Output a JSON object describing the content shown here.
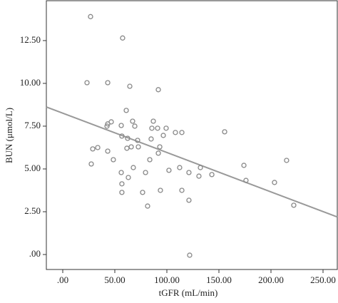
{
  "chart_data": {
    "type": "scatter",
    "x_label": "tGFR (mL/min)",
    "y_label": "BUN (μmol/L)",
    "xlim": [
      -15.75,
      263.7
    ],
    "ylim": [
      -0.875,
      14.83
    ],
    "xticks": [
      {
        "value": 0,
        "label": ".00"
      },
      {
        "value": 50,
        "label": "50.00"
      },
      {
        "value": 100,
        "label": "100.00"
      },
      {
        "value": 150,
        "label": "150.00"
      },
      {
        "value": 200,
        "label": "200.00"
      },
      {
        "value": 250,
        "label": "250.00"
      }
    ],
    "yticks": [
      {
        "value": 0,
        "label": ".00"
      },
      {
        "value": 2.5,
        "label": "2.50"
      },
      {
        "value": 5,
        "label": "5.00"
      },
      {
        "value": 7.5,
        "label": "7.50"
      },
      {
        "value": 10,
        "label": "10.00"
      },
      {
        "value": 12.5,
        "label": "12.50"
      }
    ],
    "color": "#888888",
    "fit_color": "#999999",
    "fit": {
      "intercept": 8.26,
      "slope": -0.023
    },
    "x": [
      26.7,
      57.5,
      23.3,
      43.2,
      64.4,
      91.8,
      61,
      46.6,
      43.2,
      42.5,
      67.1,
      69.2,
      87,
      85.6,
      91.1,
      99.3,
      56.2,
      108.2,
      114.4,
      155.5,
      56.8,
      62.3,
      71.9,
      96.6,
      84.9,
      61.6,
      65.8,
      72.6,
      28.8,
      33.6,
      43.2,
      93.2,
      91.8,
      27.4,
      48.6,
      83.6,
      112.3,
      102,
      132.2,
      174,
      215,
      67.8,
      56.2,
      79.5,
      121.2,
      143.2,
      130.8,
      63,
      176,
      203.4,
      56.8,
      56.8,
      76.7,
      93.8,
      114.4,
      121.2,
      221.9,
      81.5,
      121.9
    ],
    "y": [
      13.9,
      12.65,
      10.04,
      10.04,
      9.83,
      9.63,
      8.42,
      7.75,
      7.63,
      7.5,
      7.79,
      7.5,
      7.79,
      7.38,
      7.38,
      7.38,
      7.54,
      7.13,
      7.13,
      7.17,
      6.92,
      6.79,
      6.67,
      6.96,
      6.75,
      6.21,
      6.29,
      6.29,
      6.17,
      6.25,
      6.04,
      6.29,
      5.92,
      5.29,
      5.54,
      5.54,
      5.08,
      4.92,
      5.08,
      5.21,
      5.5,
      5.08,
      4.79,
      4.79,
      4.79,
      4.67,
      4.58,
      4.5,
      4.33,
      4.21,
      4.13,
      3.63,
      3.63,
      3.75,
      3.75,
      3.17,
      2.88,
      2.83,
      -0.04
    ]
  }
}
